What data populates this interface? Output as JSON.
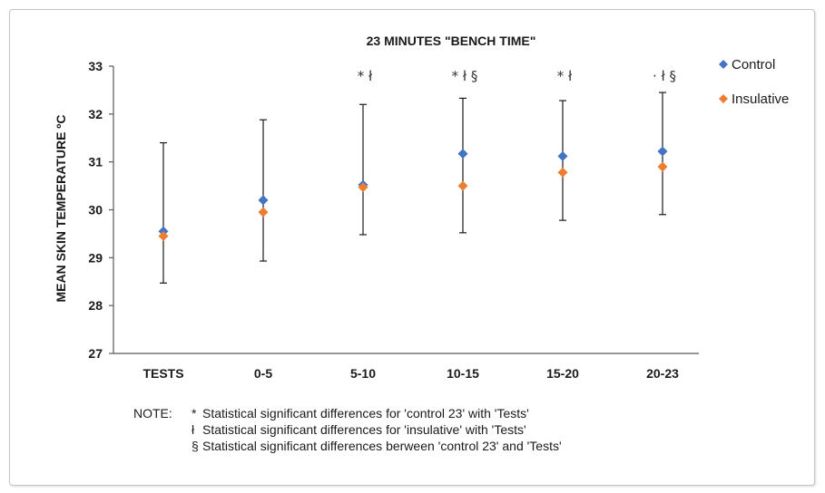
{
  "chart_data": {
    "type": "scatter",
    "title": "23 MINUTES \"BENCH TIME\"",
    "ylabel": "MEAN SKIN TEMPERATURE ºC",
    "xlabel": "",
    "categories": [
      "TESTS",
      "0-5",
      "5-10",
      "10-15",
      "15-20",
      "20-23"
    ],
    "ylim": [
      27,
      33
    ],
    "yticks": [
      "27",
      "28",
      "29",
      "30",
      "31",
      "32",
      "33"
    ],
    "grid": false,
    "legend_position": "top-right",
    "series": [
      {
        "name": "Control",
        "color": "#4472c4",
        "values": [
          29.55,
          30.2,
          30.52,
          31.17,
          31.12,
          31.22
        ]
      },
      {
        "name": "Insulative",
        "color": "#ed7d31",
        "values": [
          29.45,
          29.95,
          30.47,
          30.5,
          30.78,
          30.9
        ]
      }
    ],
    "error_bars": {
      "lower": [
        28.47,
        28.93,
        29.48,
        29.52,
        29.78,
        29.9
      ],
      "upper": [
        31.4,
        31.88,
        32.2,
        32.33,
        32.28,
        32.45
      ]
    },
    "annotations": [
      "",
      "",
      "*  ł",
      "*  ł  §",
      "*  ł",
      "· ł §"
    ]
  },
  "notes": {
    "lead": "NOTE:",
    "lines": [
      {
        "symbol": "*",
        "text": "Statistical significant differences for 'control 23' with 'Tests'"
      },
      {
        "symbol": "ł",
        "text": "Statistical significant differences for 'insulative' with 'Tests'"
      },
      {
        "symbol": "§",
        "text": "Statistical significant differences berween 'control 23' and 'Tests'"
      }
    ]
  }
}
